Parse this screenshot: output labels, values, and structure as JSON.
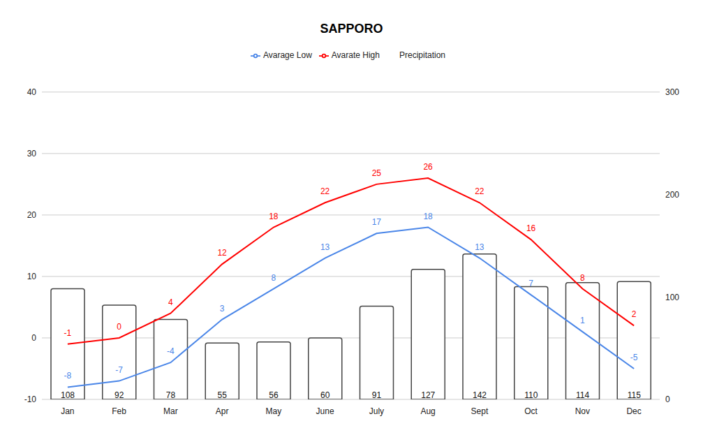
{
  "chart_data": {
    "type": "bar",
    "title": "SAPPORO",
    "categories": [
      "Jan",
      "Feb",
      "Mar",
      "Apr",
      "May",
      "June",
      "July",
      "Aug",
      "Sept",
      "Oct",
      "Nov",
      "Dec"
    ],
    "series": [
      {
        "name": "Precipitation",
        "type": "bar",
        "axis": "y2",
        "color": "#ffffff",
        "values": [
          108,
          92,
          78,
          55,
          56,
          60,
          91,
          127,
          142,
          110,
          114,
          115
        ]
      },
      {
        "name": "Avarate High",
        "type": "line",
        "color": "#ff0000",
        "values": [
          -1,
          0,
          4,
          12,
          18,
          22,
          25,
          26,
          22,
          16,
          8,
          2
        ]
      },
      {
        "name": "Avarage Low",
        "type": "line",
        "color": "#4a86e8",
        "values": [
          -8,
          -7,
          -4,
          3,
          8,
          13,
          17,
          18,
          13,
          7,
          1,
          -5
        ]
      }
    ],
    "ylim": [
      -10,
      40
    ],
    "yticks": [
      -10,
      0,
      10,
      20,
      30,
      40
    ],
    "y2lim": [
      0,
      300
    ],
    "y2ticks": [
      0,
      100,
      200,
      300
    ],
    "grid": true,
    "legend": "top",
    "data_labels": true
  }
}
